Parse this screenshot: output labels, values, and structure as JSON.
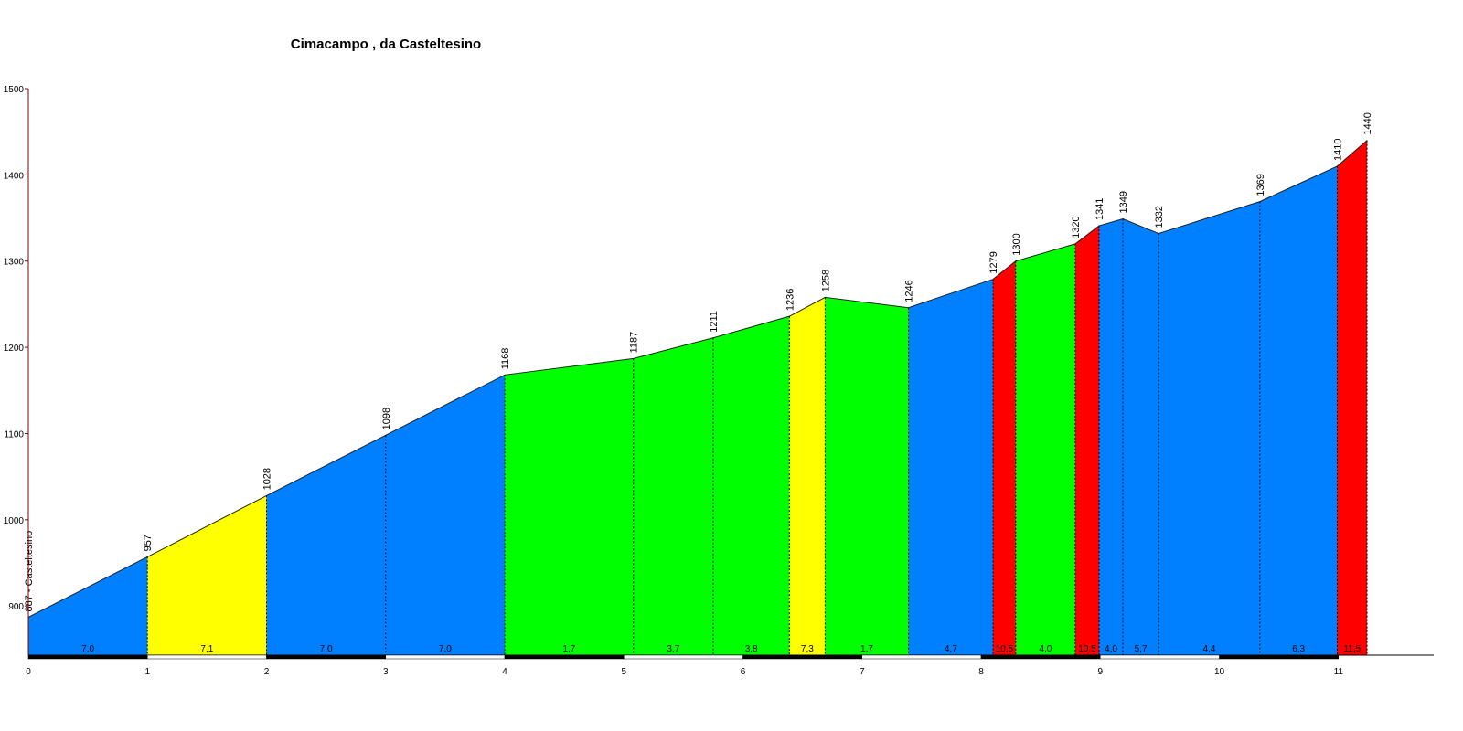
{
  "chart_data": {
    "type": "elevation-profile",
    "title": "Cimacampo , da Casteltesino",
    "distances": [
      0,
      1,
      2,
      3,
      4,
      5.08,
      5.75,
      6.39,
      6.69,
      7.39,
      8.1,
      8.29,
      8.79,
      8.99,
      9.19,
      9.49,
      10.34,
      10.99,
      11.24
    ],
    "elevations": [
      887,
      957,
      1028,
      1098,
      1168,
      1187,
      1211,
      1236,
      1258,
      1246,
      1279,
      1300,
      1320,
      1341,
      1349,
      1332,
      1369,
      1410,
      1440
    ],
    "value_labels": [
      "887 - Casteltesino",
      "957",
      "1028",
      "1098",
      "1168",
      "1187",
      "1211",
      "1236",
      "1258",
      "1246",
      "1279",
      "1300",
      "1320",
      "1341",
      "1349",
      "1332",
      "1369",
      "1410",
      "1440"
    ],
    "gradients": [
      7.0,
      7.1,
      7.0,
      7.0,
      1.7,
      3.7,
      3.8,
      7.3,
      1.7,
      4.7,
      10.5,
      4.0,
      10.5,
      4.0,
      5.7,
      4.4,
      6.3,
      11.5
    ],
    "gradient_labels": [
      "7,0",
      "7,1",
      "7,0",
      "7,0",
      "1,7",
      "3,7",
      "3,8",
      "7,3",
      "1,7",
      "4,7",
      "10,5",
      "4,0",
      "10,5",
      "4,0",
      "5,7",
      "4,4",
      "6,3",
      "11,5"
    ],
    "colors": [
      "#0080ff",
      "#ffff00",
      "#0080ff",
      "#0080ff",
      "#00ff00",
      "#00ff00",
      "#00ff00",
      "#ffff00",
      "#00ff00",
      "#0080ff",
      "#ff0000",
      "#00ff00",
      "#ff0000",
      "#0080ff",
      "#0080ff",
      "#0080ff",
      "#0080ff",
      "#ff0000"
    ],
    "xlim": [
      0,
      11.8
    ],
    "xticks": [
      0,
      1,
      2,
      3,
      4,
      5,
      6,
      7,
      8,
      9,
      10,
      11
    ],
    "ylim": [
      843,
      1500
    ],
    "yticks": [
      900,
      1000,
      1100,
      1200,
      1300,
      1400,
      1500
    ]
  }
}
